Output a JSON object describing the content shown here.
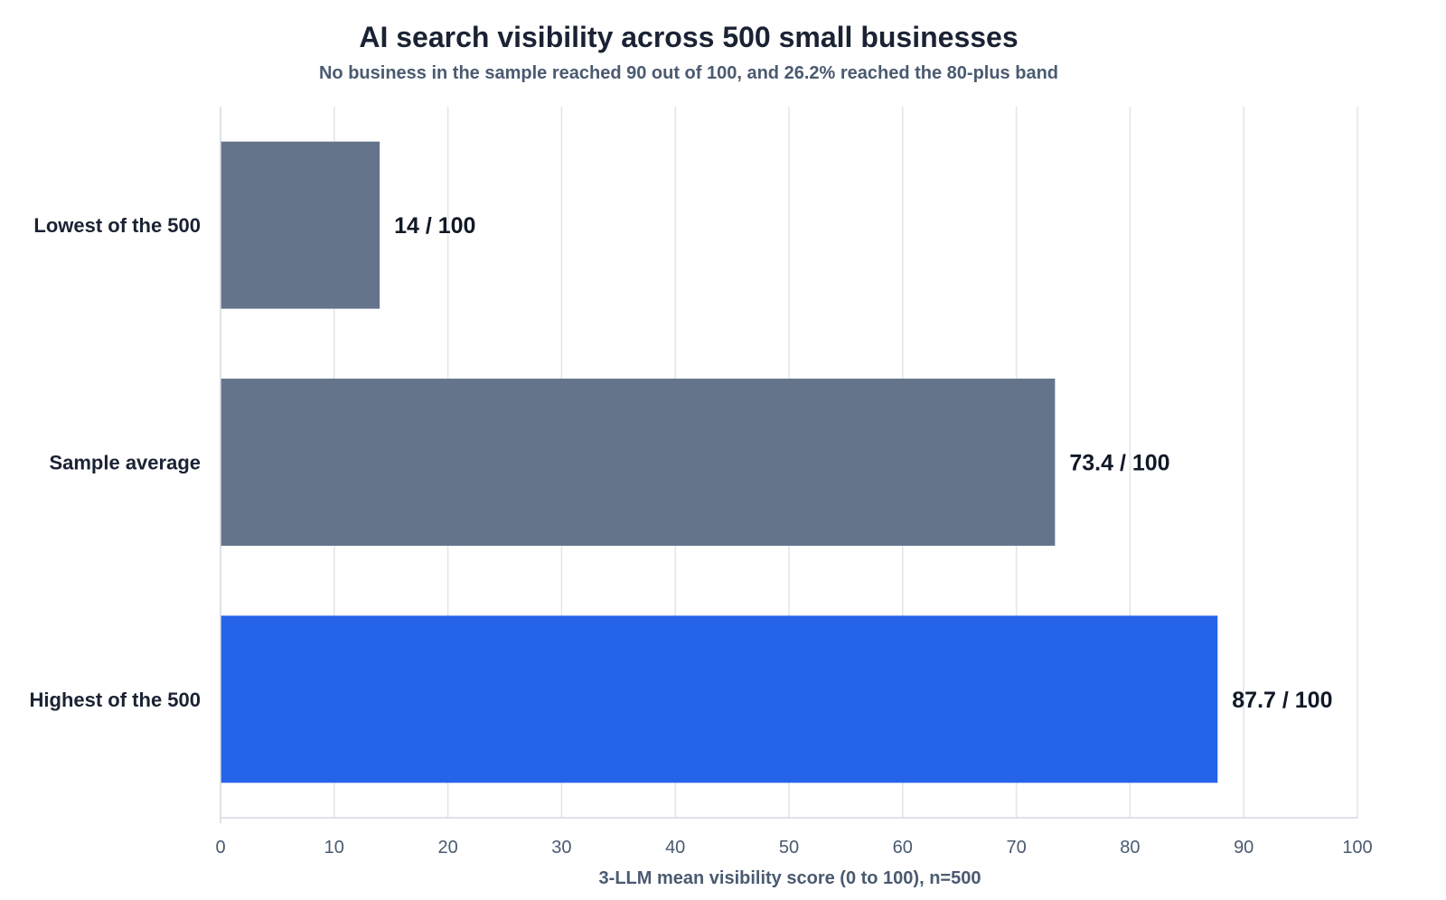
{
  "chart_data": {
    "type": "bar",
    "orientation": "horizontal",
    "title": "AI search visibility across 500 small businesses",
    "subtitle": "No business in the sample reached 90 out of 100, and 26.2% reached the 80-plus band",
    "xlabel": "3-LLM mean visibility score (0 to 100), n=500",
    "ylabel": "",
    "xlim": [
      0,
      100
    ],
    "xticks": [
      0,
      10,
      20,
      30,
      40,
      50,
      60,
      70,
      80,
      90,
      100
    ],
    "grid": true,
    "categories": [
      "Lowest of the 500",
      "Sample average",
      "Highest of the 500"
    ],
    "values": [
      14,
      73.4,
      87.7
    ],
    "value_labels": [
      "14 / 100",
      "73.4 / 100",
      "87.7 / 100"
    ],
    "bar_colors": [
      "#64748b",
      "#64748b",
      "#2563eb"
    ]
  }
}
